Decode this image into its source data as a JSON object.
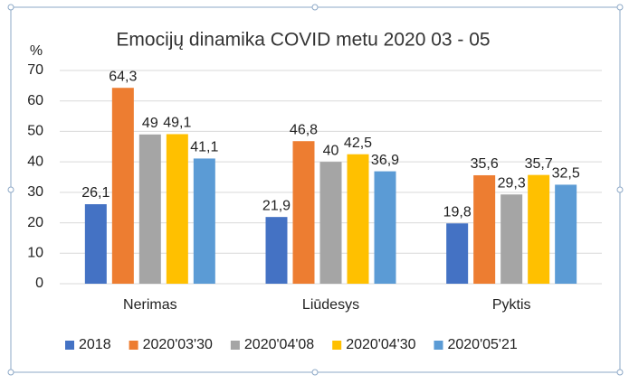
{
  "chart_data": {
    "type": "bar",
    "title": "Emocijų dinamika COVID metu 2020 03 - 05",
    "y_label": "%",
    "categories": [
      "Nerimas",
      "Liūdesys",
      "Pyktis"
    ],
    "series": [
      {
        "name": "2018",
        "color": "#4472c4",
        "values": [
          26.1,
          21.9,
          19.8
        ],
        "value_labels": [
          "26,1",
          "21,9",
          "19,8"
        ]
      },
      {
        "name": "2020'03'30",
        "color": "#ed7d31",
        "values": [
          64.3,
          46.8,
          35.6
        ],
        "value_labels": [
          "64,3",
          "46,8",
          "35,6"
        ]
      },
      {
        "name": "2020'04'08",
        "color": "#a5a5a5",
        "values": [
          49,
          40,
          29.3
        ],
        "value_labels": [
          "49",
          "40",
          "29,3"
        ]
      },
      {
        "name": "2020'04'30",
        "color": "#ffc000",
        "values": [
          49.1,
          42.5,
          35.7
        ],
        "value_labels": [
          "49,1",
          "42,5",
          "35,7"
        ]
      },
      {
        "name": "2020'05'21",
        "color": "#5b9bd5",
        "values": [
          41.1,
          36.9,
          32.5
        ],
        "value_labels": [
          "41,1",
          "36,9",
          "32,5"
        ]
      }
    ],
    "ylim": [
      0,
      70
    ],
    "yticks": [
      0,
      10,
      20,
      30,
      40,
      50,
      60,
      70
    ],
    "grid": true,
    "legend": "bottom"
  }
}
